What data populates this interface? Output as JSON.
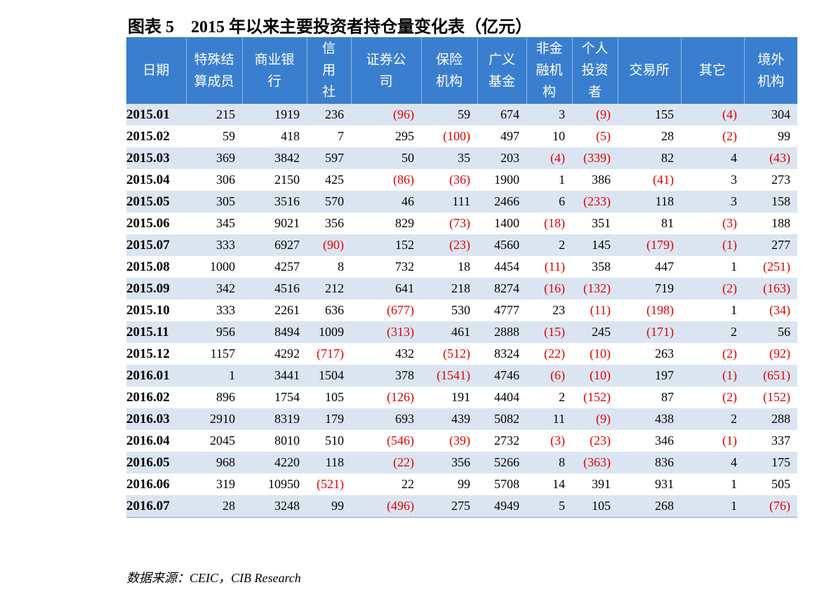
{
  "title": "图表 5　2015 年以来主要投资者持仓量变化表（亿元）",
  "table": {
    "header": [
      [
        "日期"
      ],
      [
        "特殊结",
        "算成员"
      ],
      [
        "商业银",
        "行"
      ],
      [
        "信",
        "用",
        "社"
      ],
      [
        "证券公",
        "司"
      ],
      [
        "保险",
        "机构"
      ],
      [
        "广义",
        "基金"
      ],
      [
        "非金",
        "融机",
        "构"
      ],
      [
        "个人",
        "投资",
        "者"
      ],
      [
        "交易所"
      ],
      [
        "其它"
      ],
      [
        "境外",
        "机构"
      ]
    ],
    "rows": [
      [
        "2015.01",
        "215",
        "1919",
        "236",
        "(96)",
        "59",
        "674",
        "3",
        "(9)",
        "155",
        "(4)",
        "304"
      ],
      [
        "2015.02",
        "59",
        "418",
        "7",
        "295",
        "(100)",
        "497",
        "10",
        "(5)",
        "28",
        "(2)",
        "99"
      ],
      [
        "2015.03",
        "369",
        "3842",
        "597",
        "50",
        "35",
        "203",
        "(4)",
        "(339)",
        "82",
        "4",
        "(43)"
      ],
      [
        "2015.04",
        "306",
        "2150",
        "425",
        "(86)",
        "(36)",
        "1900",
        "1",
        "386",
        "(41)",
        "3",
        "273"
      ],
      [
        "2015.05",
        "305",
        "3516",
        "570",
        "46",
        "111",
        "2466",
        "6",
        "(233)",
        "118",
        "3",
        "158"
      ],
      [
        "2015.06",
        "345",
        "9021",
        "356",
        "829",
        "(73)",
        "1400",
        "(18)",
        "351",
        "81",
        "(3)",
        "188"
      ],
      [
        "2015.07",
        "333",
        "6927",
        "(90)",
        "152",
        "(23)",
        "4560",
        "2",
        "145",
        "(179)",
        "(1)",
        "277"
      ],
      [
        "2015.08",
        "1000",
        "4257",
        "8",
        "732",
        "18",
        "4454",
        "(11)",
        "358",
        "447",
        "1",
        "(251)"
      ],
      [
        "2015.09",
        "342",
        "4516",
        "212",
        "641",
        "218",
        "8274",
        "(16)",
        "(132)",
        "719",
        "(2)",
        "(163)"
      ],
      [
        "2015.10",
        "333",
        "2261",
        "636",
        "(677)",
        "530",
        "4777",
        "23",
        "(11)",
        "(198)",
        "1",
        "(34)"
      ],
      [
        "2015.11",
        "956",
        "8494",
        "1009",
        "(313)",
        "461",
        "2888",
        "(15)",
        "245",
        "(171)",
        "2",
        "56"
      ],
      [
        "2015.12",
        "1157",
        "4292",
        "(717)",
        "432",
        "(512)",
        "8324",
        "(22)",
        "(10)",
        "263",
        "(2)",
        "(92)"
      ],
      [
        "2016.01",
        "1",
        "3441",
        "1504",
        "378",
        "(1541)",
        "4746",
        "(6)",
        "(10)",
        "197",
        "(1)",
        "(651)"
      ],
      [
        "2016.02",
        "896",
        "1754",
        "105",
        "(126)",
        "191",
        "4404",
        "2",
        "(152)",
        "87",
        "(2)",
        "(152)"
      ],
      [
        "2016.03",
        "2910",
        "8319",
        "179",
        "693",
        "439",
        "5082",
        "11",
        "(9)",
        "438",
        "2",
        "288"
      ],
      [
        "2016.04",
        "2045",
        "8010",
        "510",
        "(546)",
        "(39)",
        "2732",
        "(3)",
        "(23)",
        "346",
        "(1)",
        "337"
      ],
      [
        "2016.05",
        "968",
        "4220",
        "118",
        "(22)",
        "356",
        "5266",
        "8",
        "(363)",
        "836",
        "4",
        "175"
      ],
      [
        "2016.06",
        "319",
        "10950",
        "(521)",
        "22",
        "99",
        "5708",
        "14",
        "391",
        "931",
        "1",
        "505"
      ],
      [
        "2016.07",
        "28",
        "3248",
        "99",
        "(496)",
        "275",
        "4949",
        "5",
        "105",
        "268",
        "1",
        "(76)"
      ]
    ]
  },
  "source": "数据来源：CEIC，CIB Research"
}
